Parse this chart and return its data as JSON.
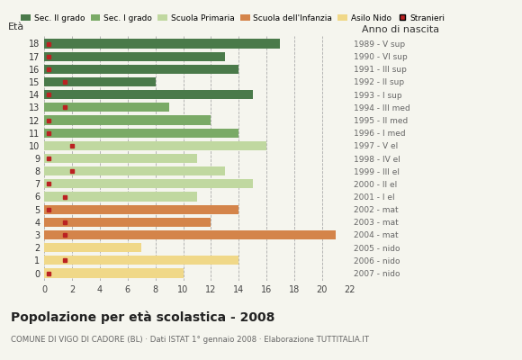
{
  "ages": [
    18,
    17,
    16,
    15,
    14,
    13,
    12,
    11,
    10,
    9,
    8,
    7,
    6,
    5,
    4,
    3,
    2,
    1,
    0
  ],
  "anno_nascita": [
    "1989 - V sup",
    "1990 - VI sup",
    "1991 - III sup",
    "1992 - II sup",
    "1993 - I sup",
    "1994 - III med",
    "1995 - II med",
    "1996 - I med",
    "1997 - V el",
    "1998 - IV el",
    "1999 - III el",
    "2000 - II el",
    "2001 - I el",
    "2002 - mat",
    "2003 - mat",
    "2004 - mat",
    "2005 - nido",
    "2006 - nido",
    "2007 - nido"
  ],
  "bar_values": [
    17,
    13,
    14,
    8,
    15,
    9,
    12,
    14,
    16,
    11,
    13,
    15,
    11,
    14,
    12,
    21,
    7,
    14,
    10
  ],
  "bar_colors": [
    "#4a7a4a",
    "#4a7a4a",
    "#4a7a4a",
    "#4a7a4a",
    "#4a7a4a",
    "#7aaa66",
    "#7aaa66",
    "#7aaa66",
    "#c0d8a0",
    "#c0d8a0",
    "#c0d8a0",
    "#c0d8a0",
    "#c0d8a0",
    "#d4844a",
    "#d4844a",
    "#d4844a",
    "#f0d888",
    "#f0d888",
    "#f0d888"
  ],
  "stranieri_values": [
    0.3,
    0.3,
    0.3,
    1.5,
    0.3,
    1.5,
    0.3,
    0.3,
    2.0,
    0.3,
    2.0,
    0.3,
    1.5,
    0.3,
    1.5,
    1.5,
    0.0,
    1.5,
    0.3
  ],
  "legend_labels": [
    "Sec. II grado",
    "Sec. I grado",
    "Scuola Primaria",
    "Scuola dell'Infanzia",
    "Asilo Nido",
    "Stranieri"
  ],
  "legend_colors": [
    "#4a7a4a",
    "#7aaa66",
    "#c0d8a0",
    "#d4844a",
    "#f0d888",
    "#bb2222"
  ],
  "title": "Popolazione per età scolastica - 2008",
  "subtitle": "COMUNE DI VIGO DI CADORE (BL) · Dati ISTAT 1° gennaio 2008 · Elaborazione TUTTITALIA.IT",
  "ylabel_left": "Età",
  "ylabel_right": "Anno di nascita",
  "xlim": [
    0,
    22
  ],
  "xticks": [
    0,
    2,
    4,
    6,
    8,
    10,
    12,
    14,
    16,
    18,
    20,
    22
  ],
  "bg_color": "#f5f5ee",
  "bar_height": 0.72
}
